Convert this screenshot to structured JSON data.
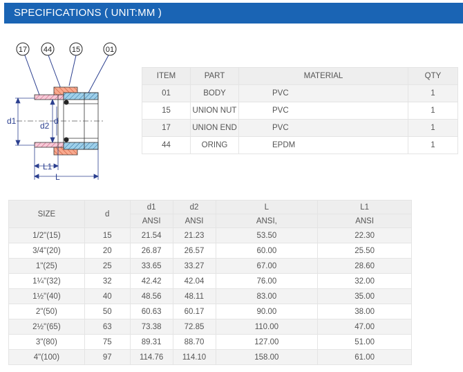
{
  "header": {
    "title": "SPECIFICATIONS ( UNIT:MM )"
  },
  "diagram": {
    "callouts": [
      "17",
      "44",
      "15",
      "01"
    ],
    "dimension_labels": {
      "d1": "d1",
      "d2": "d2",
      "d": "d",
      "L1": "L1",
      "L": "L"
    }
  },
  "materials": {
    "headers": {
      "item": "ITEM",
      "part": "PART",
      "material": "MATERIAL",
      "qty": "QTY"
    },
    "rows": [
      {
        "item": "01",
        "part": "BODY",
        "material": "PVC",
        "qty": "1"
      },
      {
        "item": "15",
        "part": "UNION NUT",
        "material": "PVC",
        "qty": "1"
      },
      {
        "item": "17",
        "part": "UNION END",
        "material": "PVC",
        "qty": "1"
      },
      {
        "item": "44",
        "part": "ORING",
        "material": "EPDM",
        "qty": "1"
      }
    ]
  },
  "sizes": {
    "headers": {
      "size": "SIZE",
      "d": "d",
      "d1": "d1",
      "d2": "d2",
      "L": "L",
      "L1": "L1",
      "d1_sub": "ANSI",
      "d2_sub": "ANSI",
      "L_sub": "ANSI,",
      "L1_sub": "ANSI"
    },
    "rows": [
      {
        "size": "1/2\"(15)",
        "d": "15",
        "d1": "21.54",
        "d2": "21.23",
        "L": "53.50",
        "L1": "22.30"
      },
      {
        "size": "3/4\"(20)",
        "d": "20",
        "d1": "26.87",
        "d2": "26.57",
        "L": "60.00",
        "L1": "25.50"
      },
      {
        "size": "1\"(25)",
        "d": "25",
        "d1": "33.65",
        "d2": "33.27",
        "L": "67.00",
        "L1": "28.60"
      },
      {
        "size": "1¼\"(32)",
        "d": "32",
        "d1": "42.42",
        "d2": "42.04",
        "L": "76.00",
        "L1": "32.00"
      },
      {
        "size": "1½\"(40)",
        "d": "40",
        "d1": "48.56",
        "d2": "48.11",
        "L": "83.00",
        "L1": "35.00"
      },
      {
        "size": "2\"(50)",
        "d": "50",
        "d1": "60.63",
        "d2": "60.17",
        "L": "90.00",
        "L1": "38.00"
      },
      {
        "size": "2½\"(65)",
        "d": "63",
        "d1": "73.38",
        "d2": "72.85",
        "L": "110.00",
        "L1": "47.00"
      },
      {
        "size": "3\"(80)",
        "d": "75",
        "d1": "89.31",
        "d2": "88.70",
        "L": "127.00",
        "L1": "51.00"
      },
      {
        "size": "4\"(100)",
        "d": "97",
        "d1": "114.76",
        "d2": "114.10",
        "L": "158.00",
        "L1": "61.00"
      }
    ]
  }
}
